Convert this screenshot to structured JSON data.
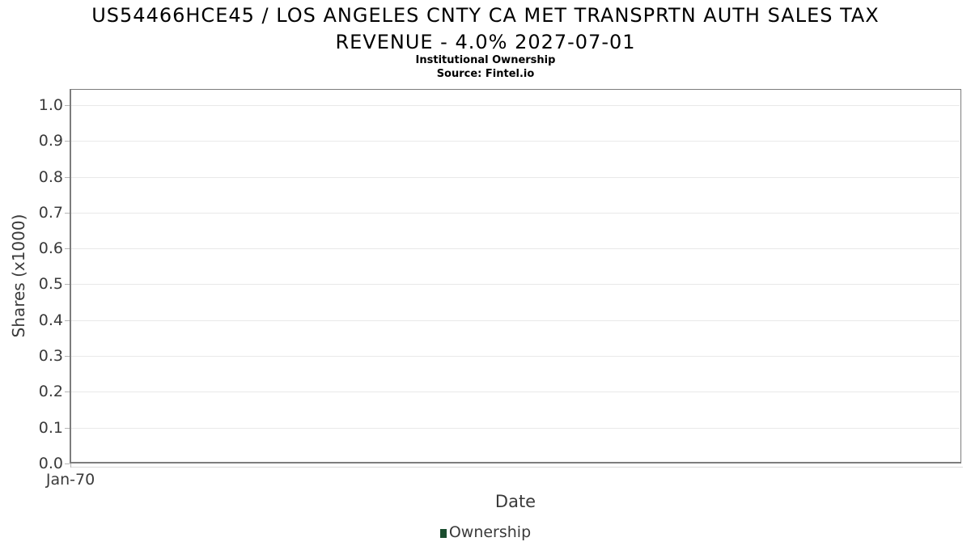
{
  "chart_data": {
    "type": "line",
    "title": "US54466HCE45 / LOS ANGELES CNTY CA MET TRANSPRTN AUTH SALES TAX REVENUE - 4.0% 2027-07-01",
    "title_lines": [
      "US54466HCE45 / LOS ANGELES CNTY CA MET TRANSPRTN AUTH SALES TAX",
      "REVENUE - 4.0% 2027-07-01"
    ],
    "subtitle": "Institutional Ownership",
    "source": "Source: Fintel.io",
    "xlabel": "Date",
    "ylabel": "Shares (x1000)",
    "ylim": [
      0.0,
      1.045
    ],
    "yticks": [
      0.0,
      0.1,
      0.2,
      0.3,
      0.4,
      0.5,
      0.6,
      0.7,
      0.8,
      0.9,
      1.0
    ],
    "ytick_labels": [
      "0.0",
      "0.1",
      "0.2",
      "0.3",
      "0.4",
      "0.5",
      "0.6",
      "0.7",
      "0.8",
      "0.9",
      "1.0"
    ],
    "xticks": [
      {
        "label": "Jan-70",
        "position": 0.0
      }
    ],
    "series": [
      {
        "name": "Ownership",
        "color": "#1a4d2e",
        "values": []
      }
    ],
    "grid": true,
    "legend_position": "bottom-center",
    "colors": {
      "plot_border": "#7d7d7d",
      "gridline": "#e9e9e9",
      "tick_mark": "#b5b5b5",
      "axis_text": "#3a3a3a",
      "title_text": "#000000",
      "series_green": "#1a4d2e",
      "background": "#ffffff"
    }
  }
}
